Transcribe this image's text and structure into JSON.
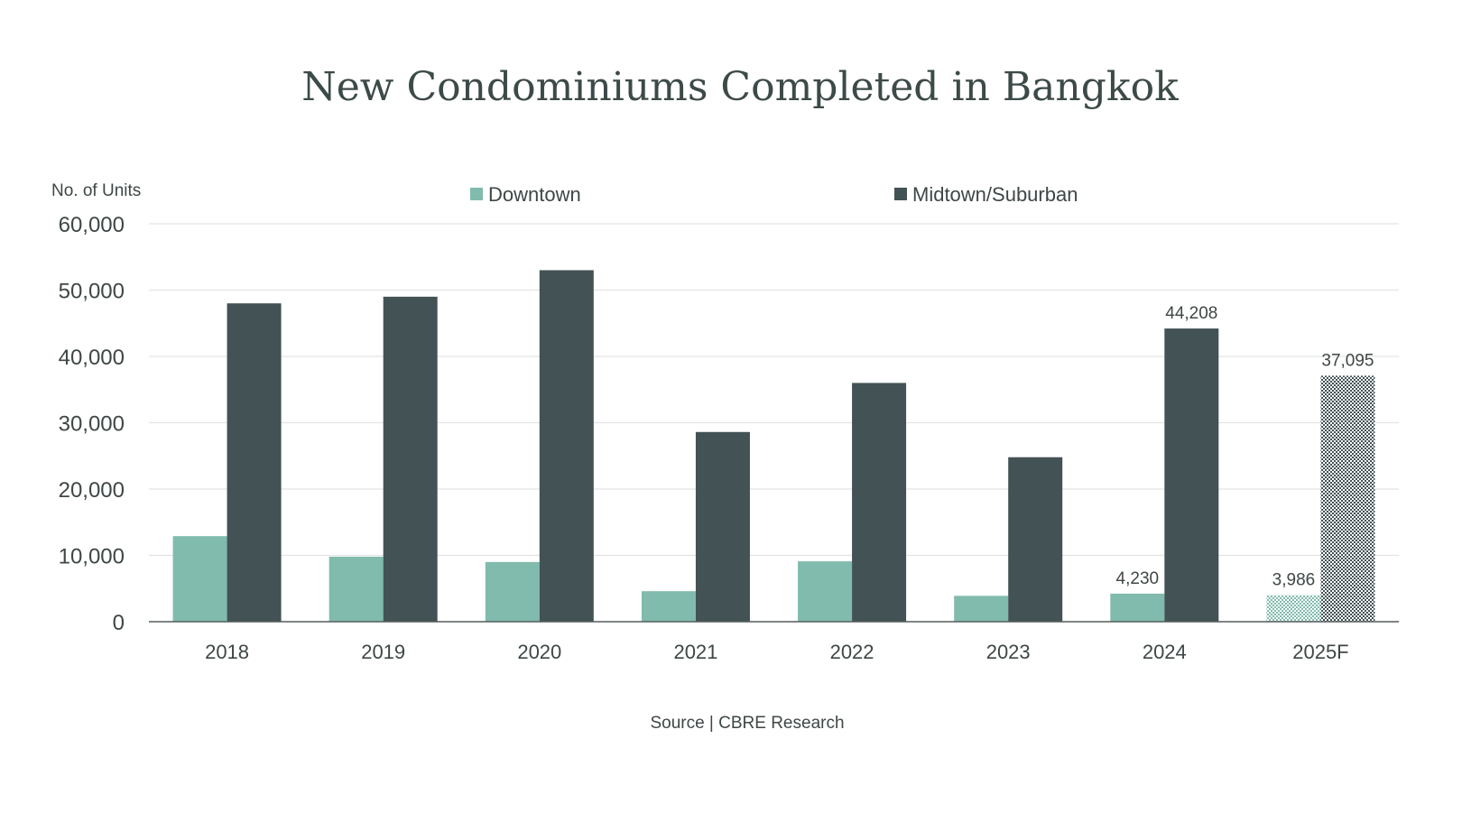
{
  "chart_data": {
    "type": "bar",
    "title": "New Condominiums Completed in Bangkok",
    "ylabel": "No. of Units",
    "ylim": [
      0,
      60000
    ],
    "yticks": [
      0,
      10000,
      20000,
      30000,
      40000,
      50000,
      60000
    ],
    "ytick_labels": [
      "0",
      "10,000",
      "20,000",
      "30,000",
      "40,000",
      "50,000",
      "60,000"
    ],
    "grid": true,
    "legend_position": "top",
    "categories": [
      "2018",
      "2019",
      "2020",
      "2021",
      "2022",
      "2023",
      "2024",
      "2025F"
    ],
    "series": [
      {
        "name": "Downtown",
        "color": "#80bbad",
        "values": [
          12900,
          9800,
          9000,
          4600,
          9100,
          3900,
          4230,
          3986
        ],
        "data_labels": [
          "",
          "",
          "",
          "",
          "",
          "",
          "4,230",
          "3,986"
        ]
      },
      {
        "name": "Midtown/Suburban",
        "color": "#435254",
        "values": [
          48000,
          49000,
          53000,
          28600,
          36000,
          24800,
          44208,
          37095
        ],
        "data_labels": [
          "",
          "",
          "",
          "",
          "",
          "",
          "44,208",
          "37,095"
        ]
      }
    ],
    "forecast_category": "2025F",
    "source": "Source | CBRE Research"
  }
}
